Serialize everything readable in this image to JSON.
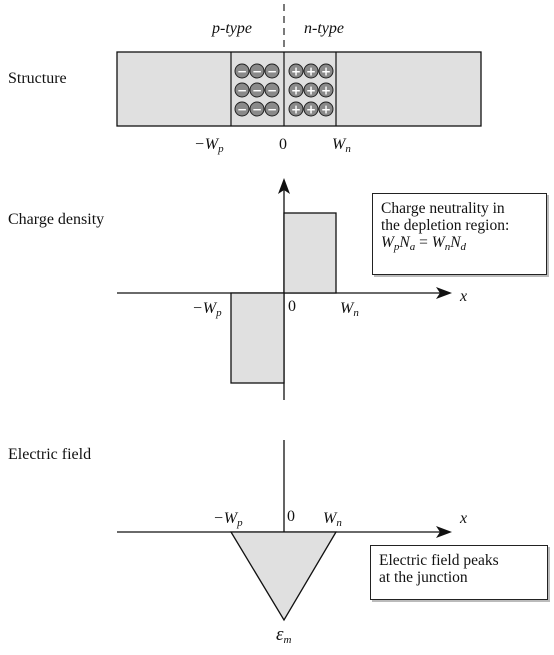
{
  "rows": {
    "structure": "Structure",
    "charge": "Charge density",
    "field": "Electric field"
  },
  "regions": {
    "p_type": "p-type",
    "n_type": "n-type"
  },
  "ticks": {
    "neg_wp": "−W",
    "neg_wp_sub": "p",
    "zero": "0",
    "wn": "W",
    "wn_sub": "n",
    "x_axis": "x",
    "em": "ε",
    "em_sub": "m"
  },
  "notes": {
    "neutrality_line1": "Charge neutrality in",
    "neutrality_line2": "the depletion region:",
    "neutrality_eq": "WpNa = WnNd",
    "field_line1": "Electric field peaks",
    "field_line2": "at the junction"
  },
  "charges": {
    "minus": "−",
    "plus": "+"
  },
  "colors": {
    "fill": "#e0e0e0",
    "line": "#111111",
    "ion_fill": "#8a8a8a"
  }
}
